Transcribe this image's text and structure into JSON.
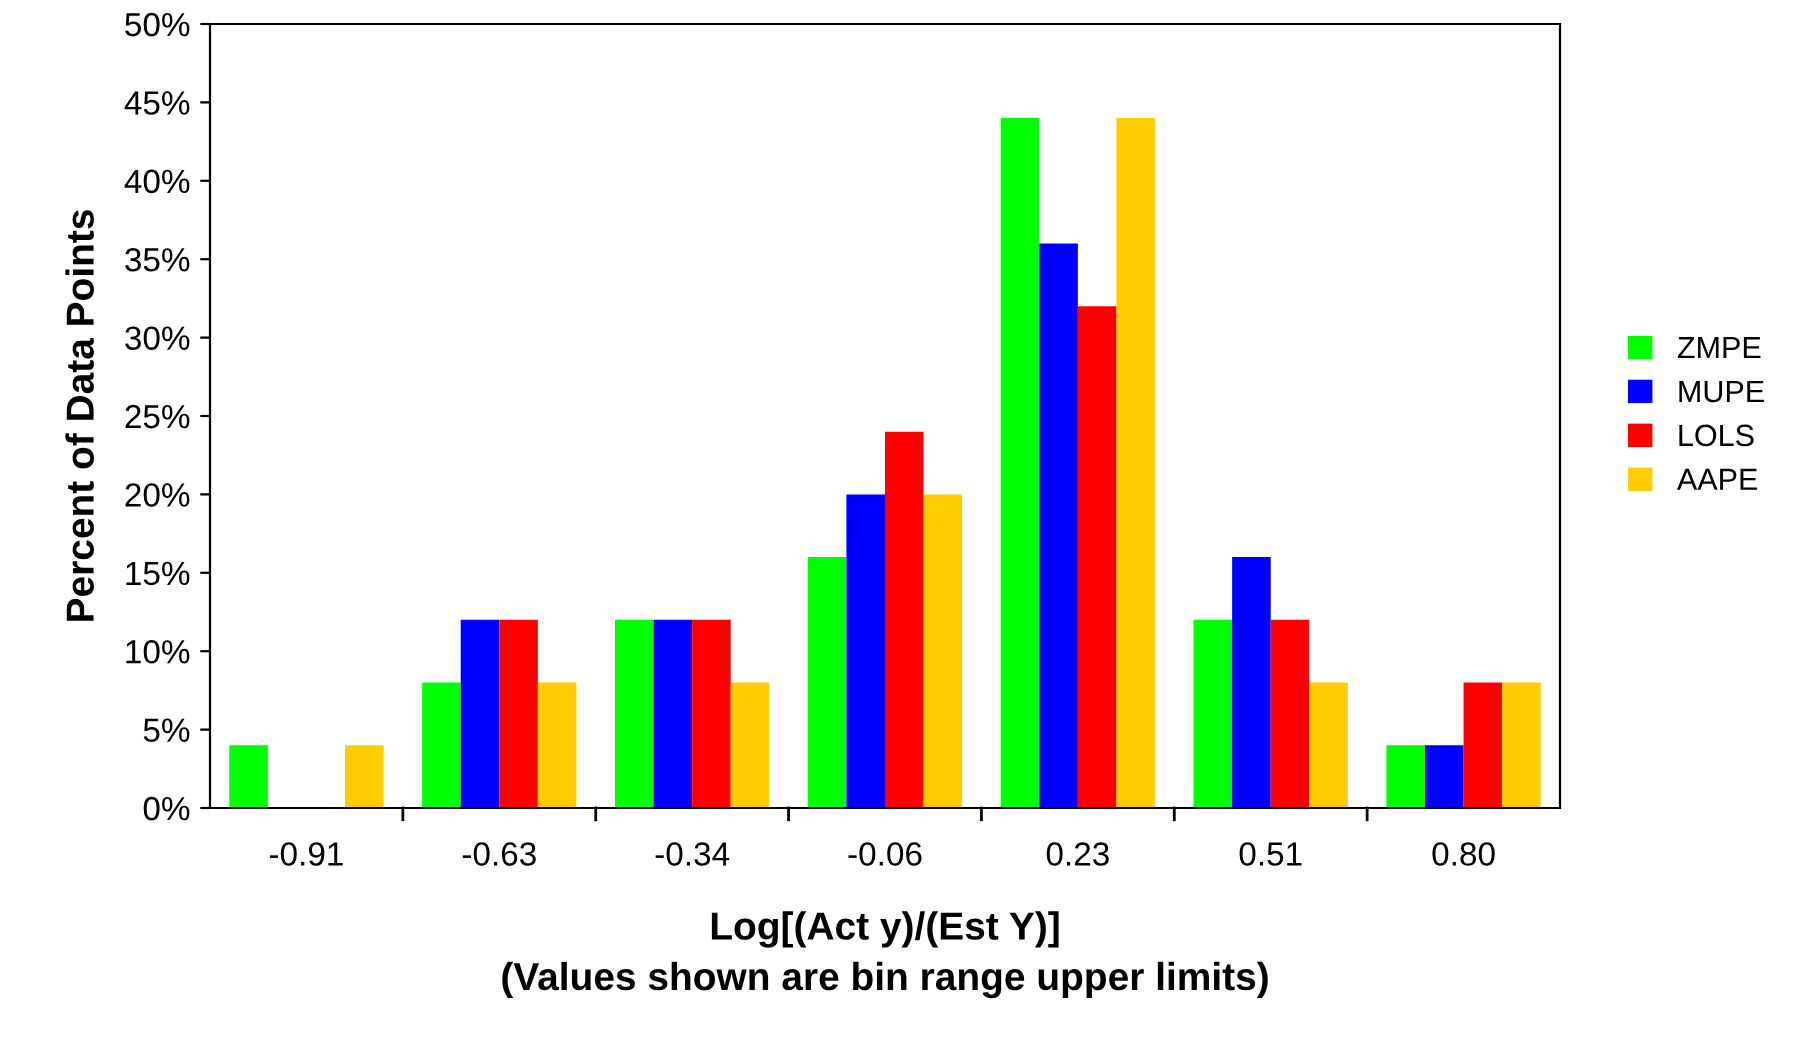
{
  "chart_data": {
    "type": "bar",
    "xlabel": "Log[(Act y)/(Est Y)]\n(Values shown are bin range upper limits)",
    "ylabel": "Percent of Data Points",
    "categories": [
      "-0.91",
      "-0.63",
      "-0.34",
      "-0.06",
      "0.23",
      "0.51",
      "0.80"
    ],
    "series": [
      {
        "name": "ZMPE",
        "color": "#00ff00",
        "values": [
          4,
          8,
          12,
          16,
          44,
          12,
          4
        ]
      },
      {
        "name": "MUPE",
        "color": "#0000ff",
        "values": [
          0,
          12,
          12,
          20,
          36,
          16,
          4
        ]
      },
      {
        "name": "LOLS",
        "color": "#ff0000",
        "values": [
          0,
          12,
          12,
          24,
          32,
          12,
          8
        ]
      },
      {
        "name": "AAPE",
        "color": "#ffcc00",
        "values": [
          4,
          8,
          8,
          20,
          44,
          8,
          8
        ]
      }
    ],
    "ylim": [
      0,
      50
    ],
    "yticks": [
      {
        "value": 0,
        "label": "0%"
      },
      {
        "value": 5,
        "label": "5%"
      },
      {
        "value": 10,
        "label": "10%"
      },
      {
        "value": 15,
        "label": "15%"
      },
      {
        "value": 20,
        "label": "20%"
      },
      {
        "value": 25,
        "label": "25%"
      },
      {
        "value": 30,
        "label": "30%"
      },
      {
        "value": 35,
        "label": "35%"
      },
      {
        "value": 40,
        "label": "40%"
      },
      {
        "value": 45,
        "label": "45%"
      },
      {
        "value": 50,
        "label": "50%"
      }
    ],
    "grid": false,
    "legend": "right"
  }
}
